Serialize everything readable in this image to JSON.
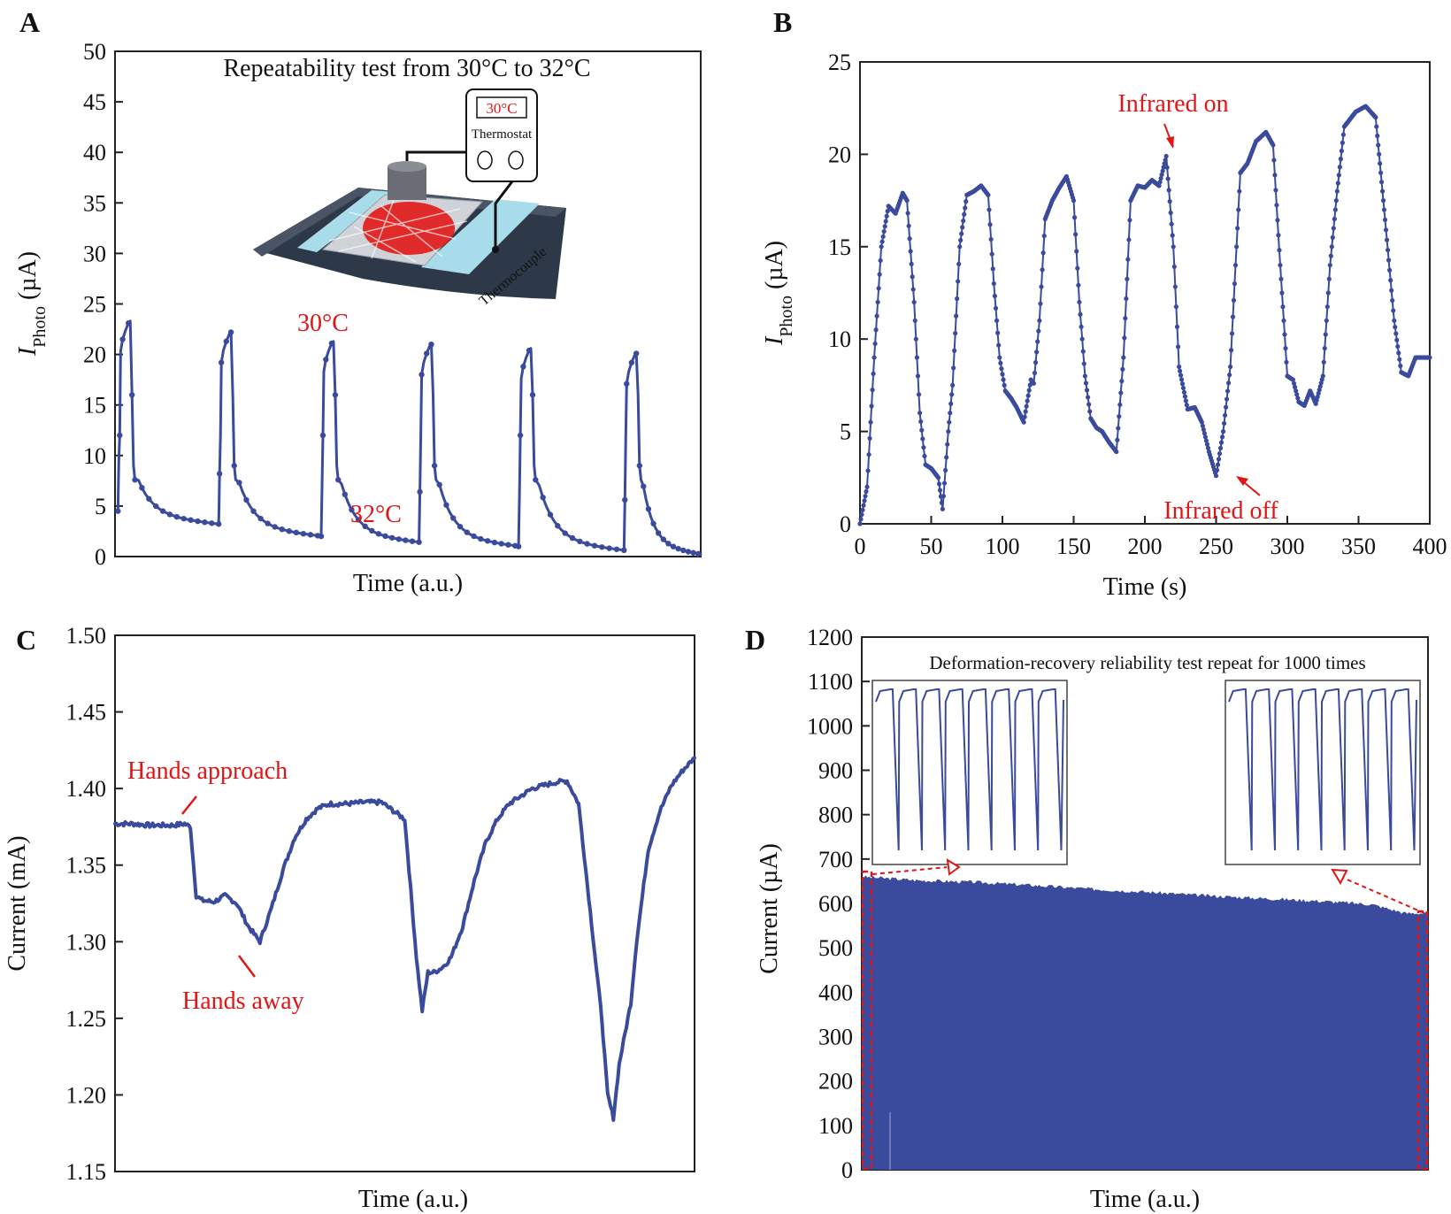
{
  "colors": {
    "series": "#3a4a9c",
    "annotation": "#e01515",
    "axis": "#222222"
  },
  "chart_data": [
    {
      "panel": "A",
      "type": "line",
      "title": "Repeatability test from 30°C to 32°C",
      "xlabel": "Time (a.u.)",
      "ylabel_main": "I",
      "ylabel_sub": "Photo",
      "ylabel_unit": " (µA)",
      "xlim": [
        0,
        100
      ],
      "ylim": [
        0,
        50
      ],
      "yticks": [
        0,
        5,
        10,
        15,
        20,
        25,
        30,
        35,
        40,
        45,
        50
      ],
      "annotations": [
        "30°C",
        "32°C"
      ],
      "inset": {
        "display": "30°C",
        "thermostat_label": "Thermostat",
        "thermocouple_label": "Thermocouple"
      },
      "cycles": [
        {
          "start": 0.5,
          "base": 4.5,
          "peak": 23.3,
          "end": 3.2
        },
        {
          "start": 17.7,
          "base": 3.2,
          "peak": 22.2,
          "end": 2.0
        },
        {
          "start": 35.2,
          "base": 2.0,
          "peak": 21.3,
          "end": 1.4
        },
        {
          "start": 51.9,
          "base": 1.4,
          "peak": 21.0,
          "end": 1.0
        },
        {
          "start": 68.9,
          "base": 1.0,
          "peak": 20.6,
          "end": 0.6
        },
        {
          "start": 86.9,
          "base": 0.6,
          "peak": 20.1,
          "end": 0.2
        }
      ]
    },
    {
      "panel": "B",
      "type": "line",
      "xlabel": "Time (s)",
      "ylabel_main": "I",
      "ylabel_sub": "Photo",
      "ylabel_unit": " (µA)",
      "xlim": [
        0,
        400
      ],
      "ylim": [
        0,
        25
      ],
      "xticks": [
        0,
        50,
        100,
        150,
        200,
        250,
        300,
        350,
        400
      ],
      "yticks": [
        0,
        5,
        10,
        15,
        20,
        25
      ],
      "annotations": [
        "Infrared on",
        "Infrared off"
      ],
      "x": [
        0,
        5,
        10,
        15,
        20,
        25,
        30,
        33,
        38,
        42,
        46,
        50,
        55,
        58,
        62,
        65,
        70,
        75,
        80,
        85,
        90,
        94,
        98,
        102,
        106,
        110,
        115,
        120,
        122,
        126,
        130,
        135,
        140,
        145,
        150,
        154,
        158,
        162,
        166,
        170,
        175,
        180,
        185,
        190,
        195,
        200,
        205,
        210,
        215,
        220,
        224,
        230,
        235,
        240,
        245,
        250,
        255,
        260,
        263,
        267,
        272,
        278,
        285,
        290,
        295,
        300,
        304,
        308,
        312,
        316,
        320,
        325,
        330,
        335,
        340,
        348,
        355,
        362,
        368,
        375,
        380,
        385,
        390,
        393,
        396,
        400
      ],
      "values": [
        0,
        2,
        9,
        15,
        17.2,
        16.8,
        17.9,
        17.5,
        12,
        6,
        3.2,
        3.0,
        2.5,
        0.8,
        5,
        7.5,
        15,
        17.8,
        18.0,
        18.3,
        17.8,
        13,
        9,
        7.2,
        6.8,
        6.3,
        5.5,
        7.8,
        7.6,
        11,
        16.5,
        17.5,
        18.2,
        18.8,
        17.5,
        12,
        8,
        5.7,
        5.2,
        5.0,
        4.4,
        3.9,
        9,
        17.5,
        18.3,
        18.2,
        18.6,
        18.3,
        19.9,
        15,
        8.5,
        6.2,
        6.3,
        5.5,
        3.9,
        2.6,
        5,
        8.5,
        13,
        19,
        19.5,
        20.7,
        21.2,
        20.5,
        14,
        8,
        7.8,
        6.6,
        6.4,
        7.2,
        6.5,
        8,
        14,
        18,
        21.5,
        22.3,
        22.6,
        22,
        17,
        11,
        8.2,
        8.0,
        9.0,
        9.0,
        9.0,
        9.0
      ]
    },
    {
      "panel": "C",
      "type": "line",
      "xlabel": "Time (a.u.)",
      "ylabel": "Current (mA)",
      "xlim": [
        0,
        100
      ],
      "ylim": [
        1.15,
        1.5
      ],
      "yticks": [
        1.15,
        1.2,
        1.25,
        1.3,
        1.35,
        1.4,
        1.45,
        1.5
      ],
      "annotations": [
        "Hands approach",
        "Hands away"
      ],
      "x": [
        0,
        3,
        6,
        10,
        12,
        13,
        14,
        15,
        17,
        19,
        21,
        23,
        25,
        27,
        29,
        31,
        33,
        35,
        37,
        40,
        43,
        46,
        50,
        52,
        53,
        54,
        55,
        56,
        57,
        58,
        60,
        62,
        64,
        66,
        68,
        70,
        72,
        74,
        76,
        78,
        80,
        82,
        84,
        85,
        86,
        87,
        88,
        89,
        90,
        91,
        92,
        94,
        96,
        98,
        100
      ],
      "values": [
        1.377,
        1.377,
        1.376,
        1.376,
        1.377,
        1.375,
        1.33,
        1.327,
        1.326,
        1.33,
        1.325,
        1.31,
        1.3,
        1.322,
        1.347,
        1.368,
        1.38,
        1.387,
        1.39,
        1.39,
        1.391,
        1.391,
        1.38,
        1.29,
        1.255,
        1.28,
        1.28,
        1.282,
        1.285,
        1.29,
        1.31,
        1.34,
        1.365,
        1.38,
        1.39,
        1.395,
        1.4,
        1.402,
        1.404,
        1.405,
        1.39,
        1.32,
        1.25,
        1.2,
        1.185,
        1.22,
        1.24,
        1.26,
        1.3,
        1.33,
        1.36,
        1.385,
        1.402,
        1.412,
        1.42
      ]
    },
    {
      "panel": "D",
      "type": "area",
      "title": "Deformation-recovery reliability test repeat for 1000 times",
      "xlabel": "Time (a.u.)",
      "ylabel": "Current (µA)",
      "xlim": [
        0,
        100
      ],
      "ylim": [
        0,
        1200
      ],
      "yticks": [
        0,
        100,
        200,
        300,
        400,
        500,
        600,
        700,
        800,
        900,
        1000,
        1100,
        1200
      ],
      "x": [
        0,
        10,
        20,
        30,
        40,
        50,
        60,
        70,
        80,
        90,
        96,
        100
      ],
      "values": [
        660,
        652,
        648,
        641,
        633,
        626,
        618,
        612,
        606,
        598,
        578,
        578
      ],
      "insets": [
        {
          "position": "left",
          "cycles": 8
        },
        {
          "position": "right",
          "cycles": 8
        }
      ]
    }
  ]
}
